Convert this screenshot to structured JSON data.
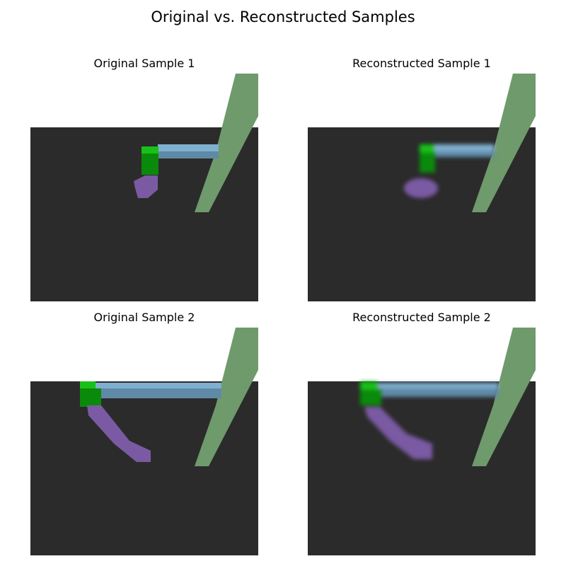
{
  "figure": {
    "title": "Original vs. Reconstructed Samples"
  },
  "panels": [
    {
      "title": "Original Sample 1",
      "kind": "original"
    },
    {
      "title": "Reconstructed Sample 1",
      "kind": "reconstructed"
    },
    {
      "title": "Original Sample 2",
      "kind": "original"
    },
    {
      "title": "Reconstructed Sample 2",
      "kind": "reconstructed"
    }
  ],
  "colors": {
    "background": "#ffffff",
    "floor": "#2b2b2b",
    "pole": "#6f9a6c",
    "arm_upper": "#7fb0cf",
    "arm_lower": "#5f8aa6",
    "joint_bright": "#18c018",
    "joint_dark": "#0a8a0a",
    "gripper": "#7a5aa3"
  }
}
